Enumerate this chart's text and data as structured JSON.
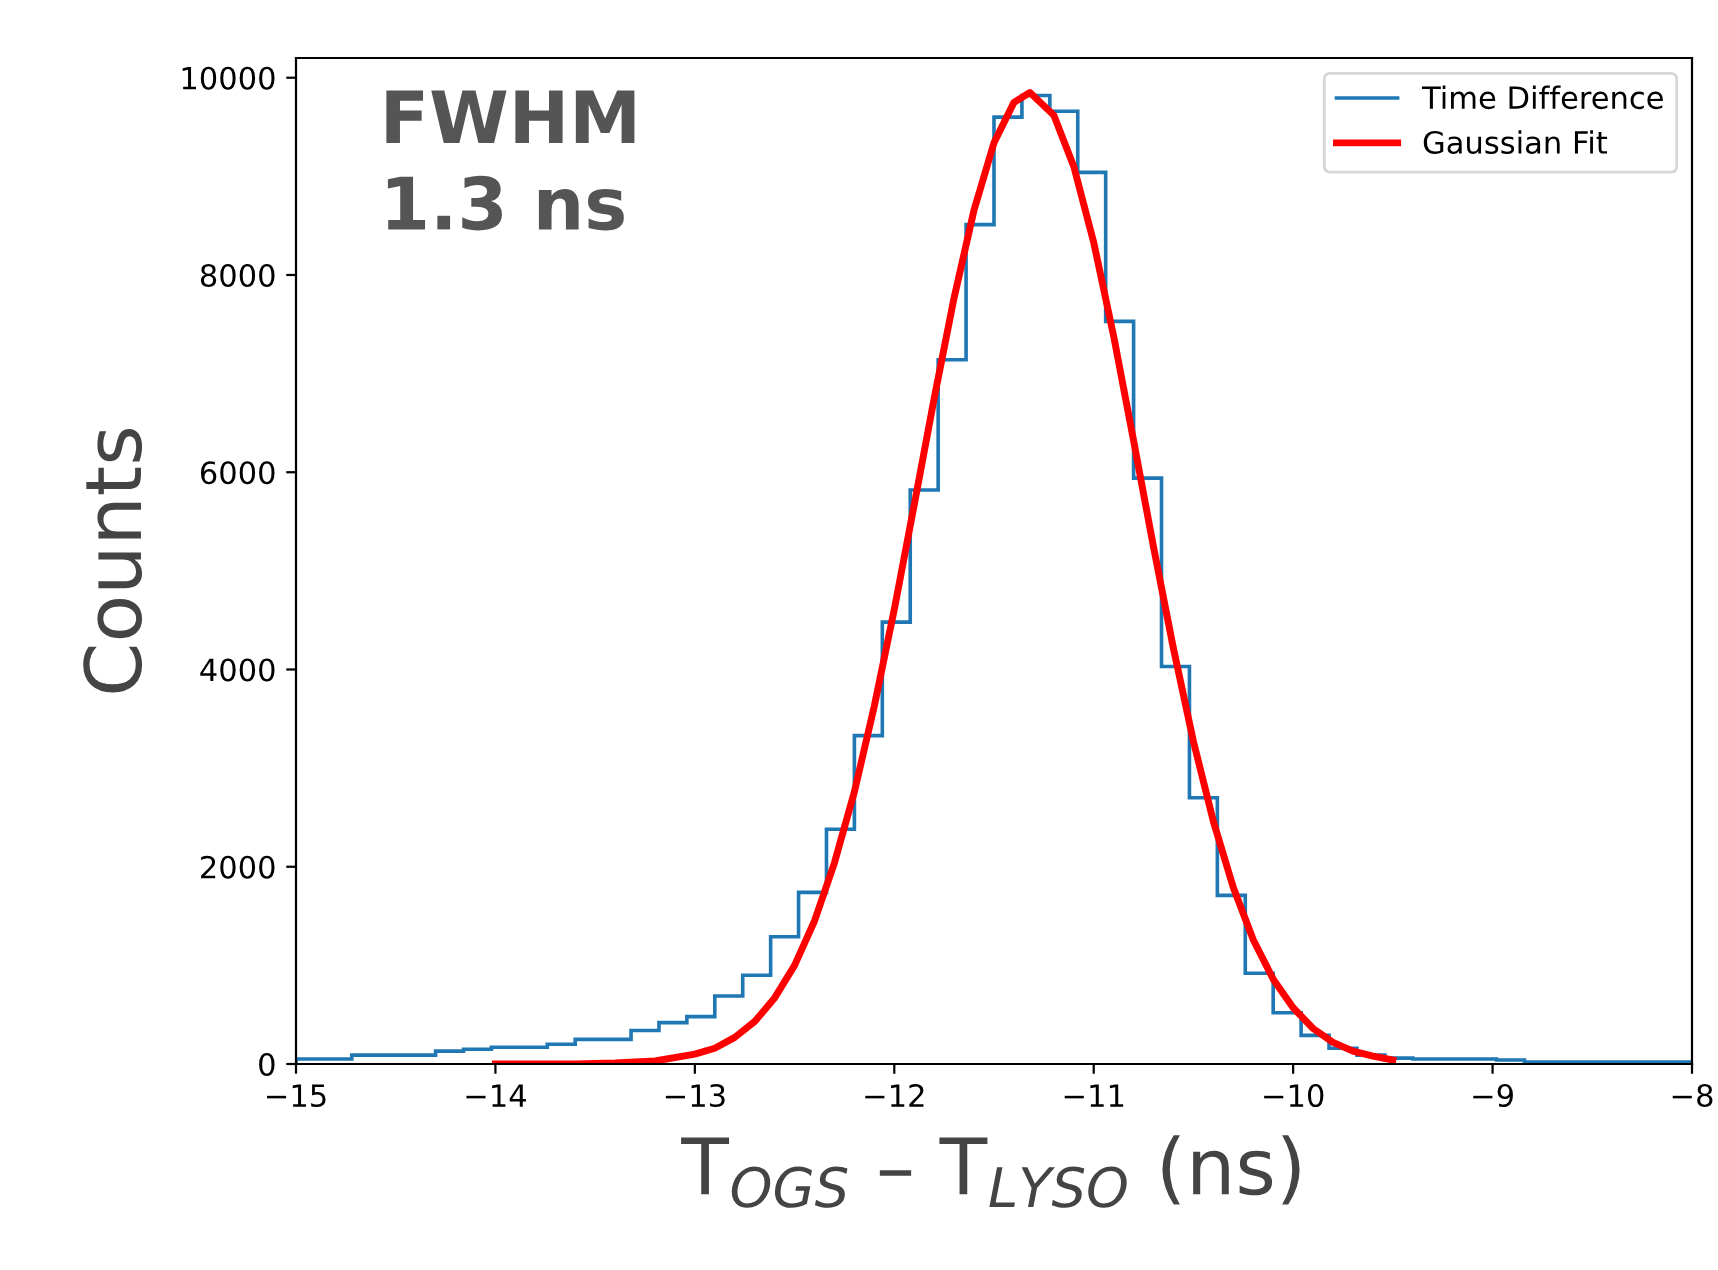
{
  "chart_data": {
    "type": "histogram",
    "xlabel": "T$_{OGS}$ – T$_{LYSO}$ (ns)",
    "ylabel": "Counts",
    "annotations": [
      "FWHM\n1.3 ns"
    ],
    "xlim": [
      -15,
      -8
    ],
    "xticks": [
      {
        "value": -15,
        "label": "−15"
      },
      {
        "value": -14,
        "label": "−14"
      },
      {
        "value": -13,
        "label": "−13"
      },
      {
        "value": -12,
        "label": "−12"
      },
      {
        "value": -11,
        "label": "−11"
      },
      {
        "value": -10,
        "label": "−10"
      },
      {
        "value": -9,
        "label": "−9"
      },
      {
        "value": -8,
        "label": "−8"
      }
    ],
    "ylim": [
      0,
      10200
    ],
    "yticks": [
      0,
      2000,
      4000,
      6000,
      8000,
      10000
    ],
    "grid": false,
    "legend": "top right",
    "series": [
      {
        "name": "Time Difference",
        "color": "#1f77b4",
        "bins": [
          -15,
          -14.86,
          -14.72,
          -14.58,
          -14.44,
          -14.3,
          -14.16,
          -14.02,
          -13.88,
          -13.74,
          -13.6,
          -13.46,
          -13.32,
          -13.18,
          -13.04,
          -12.9,
          -12.76,
          -12.62,
          -12.48,
          -12.34,
          -12.2,
          -12.06,
          -11.92,
          -11.78,
          -11.64,
          -11.5,
          -11.36,
          -11.22,
          -11.08,
          -10.94,
          -10.8,
          -10.66,
          -10.52,
          -10.38,
          -10.24,
          -10.1,
          -9.96,
          -9.82,
          -9.68,
          -9.54,
          -9.4,
          -9.26,
          -9.12,
          -8.98,
          -8.84,
          -8.7,
          -8.56,
          -8.42,
          -8.28,
          -8.14,
          -8.0
        ],
        "values": [
          50,
          50,
          90,
          90,
          90,
          130,
          150,
          170,
          170,
          200,
          250,
          250,
          340,
          420,
          480,
          690,
          900,
          1290,
          1740,
          2380,
          3330,
          4480,
          5820,
          7140,
          8510,
          9600,
          9820,
          9660,
          9040,
          7530,
          5940,
          4030,
          2700,
          1710,
          920,
          520,
          290,
          160,
          90,
          60,
          50,
          50,
          50,
          40,
          20,
          20,
          20,
          20,
          20,
          20
        ]
      },
      {
        "type": "line",
        "name": "Gaussian Fit",
        "color": "#ff0000",
        "x": [
          -14,
          -13.8,
          -13.6,
          -13.4,
          -13.2,
          -13,
          -12.9,
          -12.8,
          -12.7,
          -12.6,
          -12.5,
          -12.4,
          -12.3,
          -12.2,
          -12.1,
          -12,
          -11.9,
          -11.8,
          -11.7,
          -11.6,
          -11.5,
          -11.4,
          -11.32,
          -11.2,
          -11.1,
          -11,
          -10.9,
          -10.8,
          -10.7,
          -10.6,
          -10.5,
          -10.4,
          -10.3,
          -10.2,
          -10.1,
          -10,
          -9.9,
          -9.8,
          -9.7,
          -9.6,
          -9.5
        ],
        "values": [
          0,
          0,
          0,
          10,
          30,
          100,
          160,
          270,
          430,
          670,
          1000,
          1450,
          2040,
          2760,
          3630,
          4610,
          5670,
          6750,
          7770,
          8660,
          9340,
          9750,
          9850,
          9620,
          9100,
          8330,
          7380,
          6320,
          5240,
          4210,
          3270,
          2460,
          1790,
          1260,
          860,
          570,
          360,
          220,
          130,
          80,
          40
        ]
      }
    ]
  }
}
